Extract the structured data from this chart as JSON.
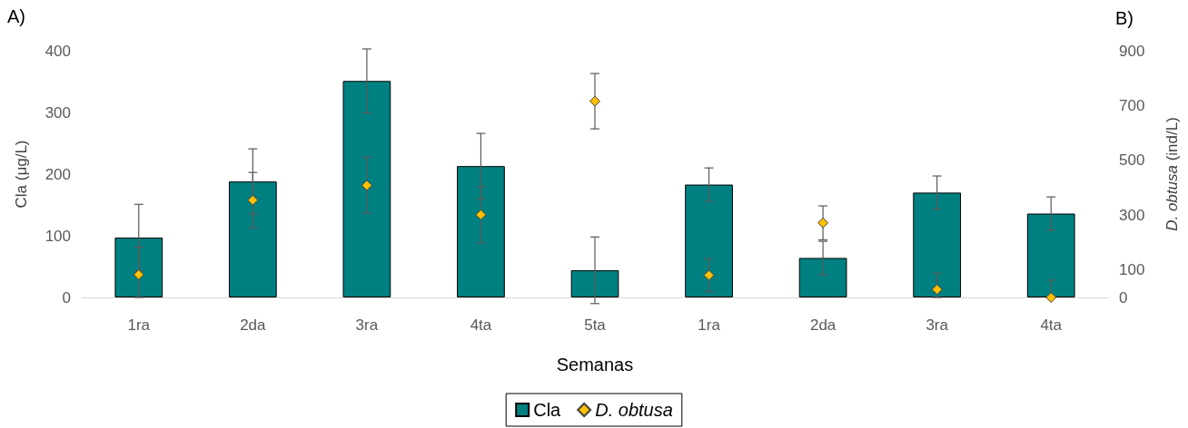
{
  "chart_data": {
    "type": "bar",
    "xlabel": "Semanas",
    "ylabel": "Cla (μg/L)",
    "y2label": "D. obtusa (ind/L)",
    "annotations": [
      "A)",
      "B)"
    ],
    "categories": [
      "1ra",
      "2da",
      "3ra",
      "4ta",
      "5ta",
      "1ra",
      "2da",
      "3ra",
      "4ta"
    ],
    "ylim": [
      0,
      400
    ],
    "yticks": [
      0,
      100,
      200,
      300,
      400
    ],
    "y2lim": [
      0,
      900
    ],
    "y2ticks": [
      0,
      100,
      300,
      500,
      700,
      900
    ],
    "marker": "diamond",
    "legend": "bottom",
    "series": [
      {
        "name": "Cla",
        "color": "#008080",
        "values": [
          97,
          188,
          351,
          213,
          44,
          183,
          64,
          170,
          136
        ],
        "errors": [
          54,
          53,
          52,
          53,
          54,
          27,
          27,
          27,
          27
        ]
      },
      {
        "name": "D. obtusa",
        "type": "scatter",
        "axis": "y2",
        "color": "#ffc000",
        "values": [
          83,
          355,
          409,
          302,
          716,
          81,
          272,
          29,
          0
        ],
        "errors": [
          [
            0,
            184
          ],
          101,
          102,
          103,
          101,
          60,
          62,
          [
            0,
            89
          ],
          [
            0,
            63
          ]
        ]
      }
    ]
  }
}
